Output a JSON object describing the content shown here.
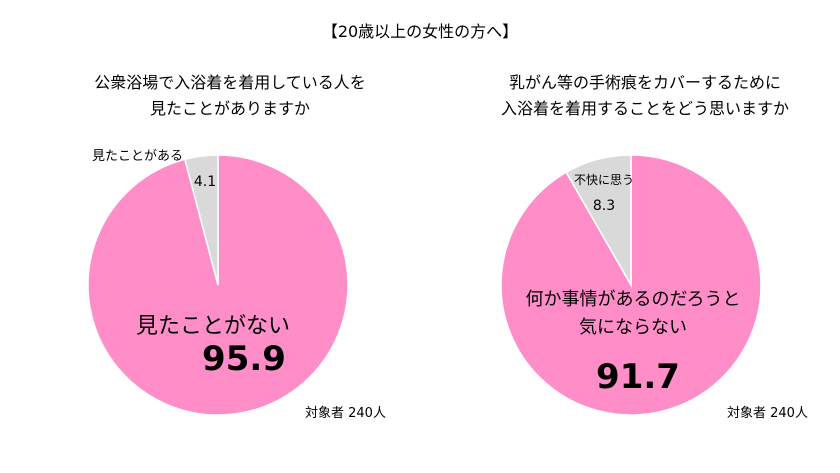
{
  "title": "【20歳以上の女性の方へ】",
  "colors": {
    "major": "#ff8ec8",
    "minor": "#d9d9d9",
    "stroke": "#ffffff"
  },
  "chart_data": [
    {
      "type": "pie",
      "title_lines": [
        "公衆浴場で入浴着を着用している人を",
        "見たことがありますか"
      ],
      "slices": [
        {
          "label_lines": [
            "見たことがない"
          ],
          "value": 95.9,
          "value_text": "95.9"
        },
        {
          "label_lines": [
            "見たことがある"
          ],
          "value": 4.1,
          "value_text": "4.1"
        }
      ],
      "note": "対象者  240人"
    },
    {
      "type": "pie",
      "title_lines": [
        "乳がん等の手術痕をカバーするために",
        "入浴着を着用することをどう思いますか"
      ],
      "slices": [
        {
          "label_lines": [
            "何か事情があるのだろうと",
            "気にならない"
          ],
          "value": 91.7,
          "value_text": "91.7"
        },
        {
          "label_lines": [
            "不快に思う"
          ],
          "value": 8.3,
          "value_text": "8.3"
        }
      ],
      "note": "対象者  240人"
    }
  ]
}
